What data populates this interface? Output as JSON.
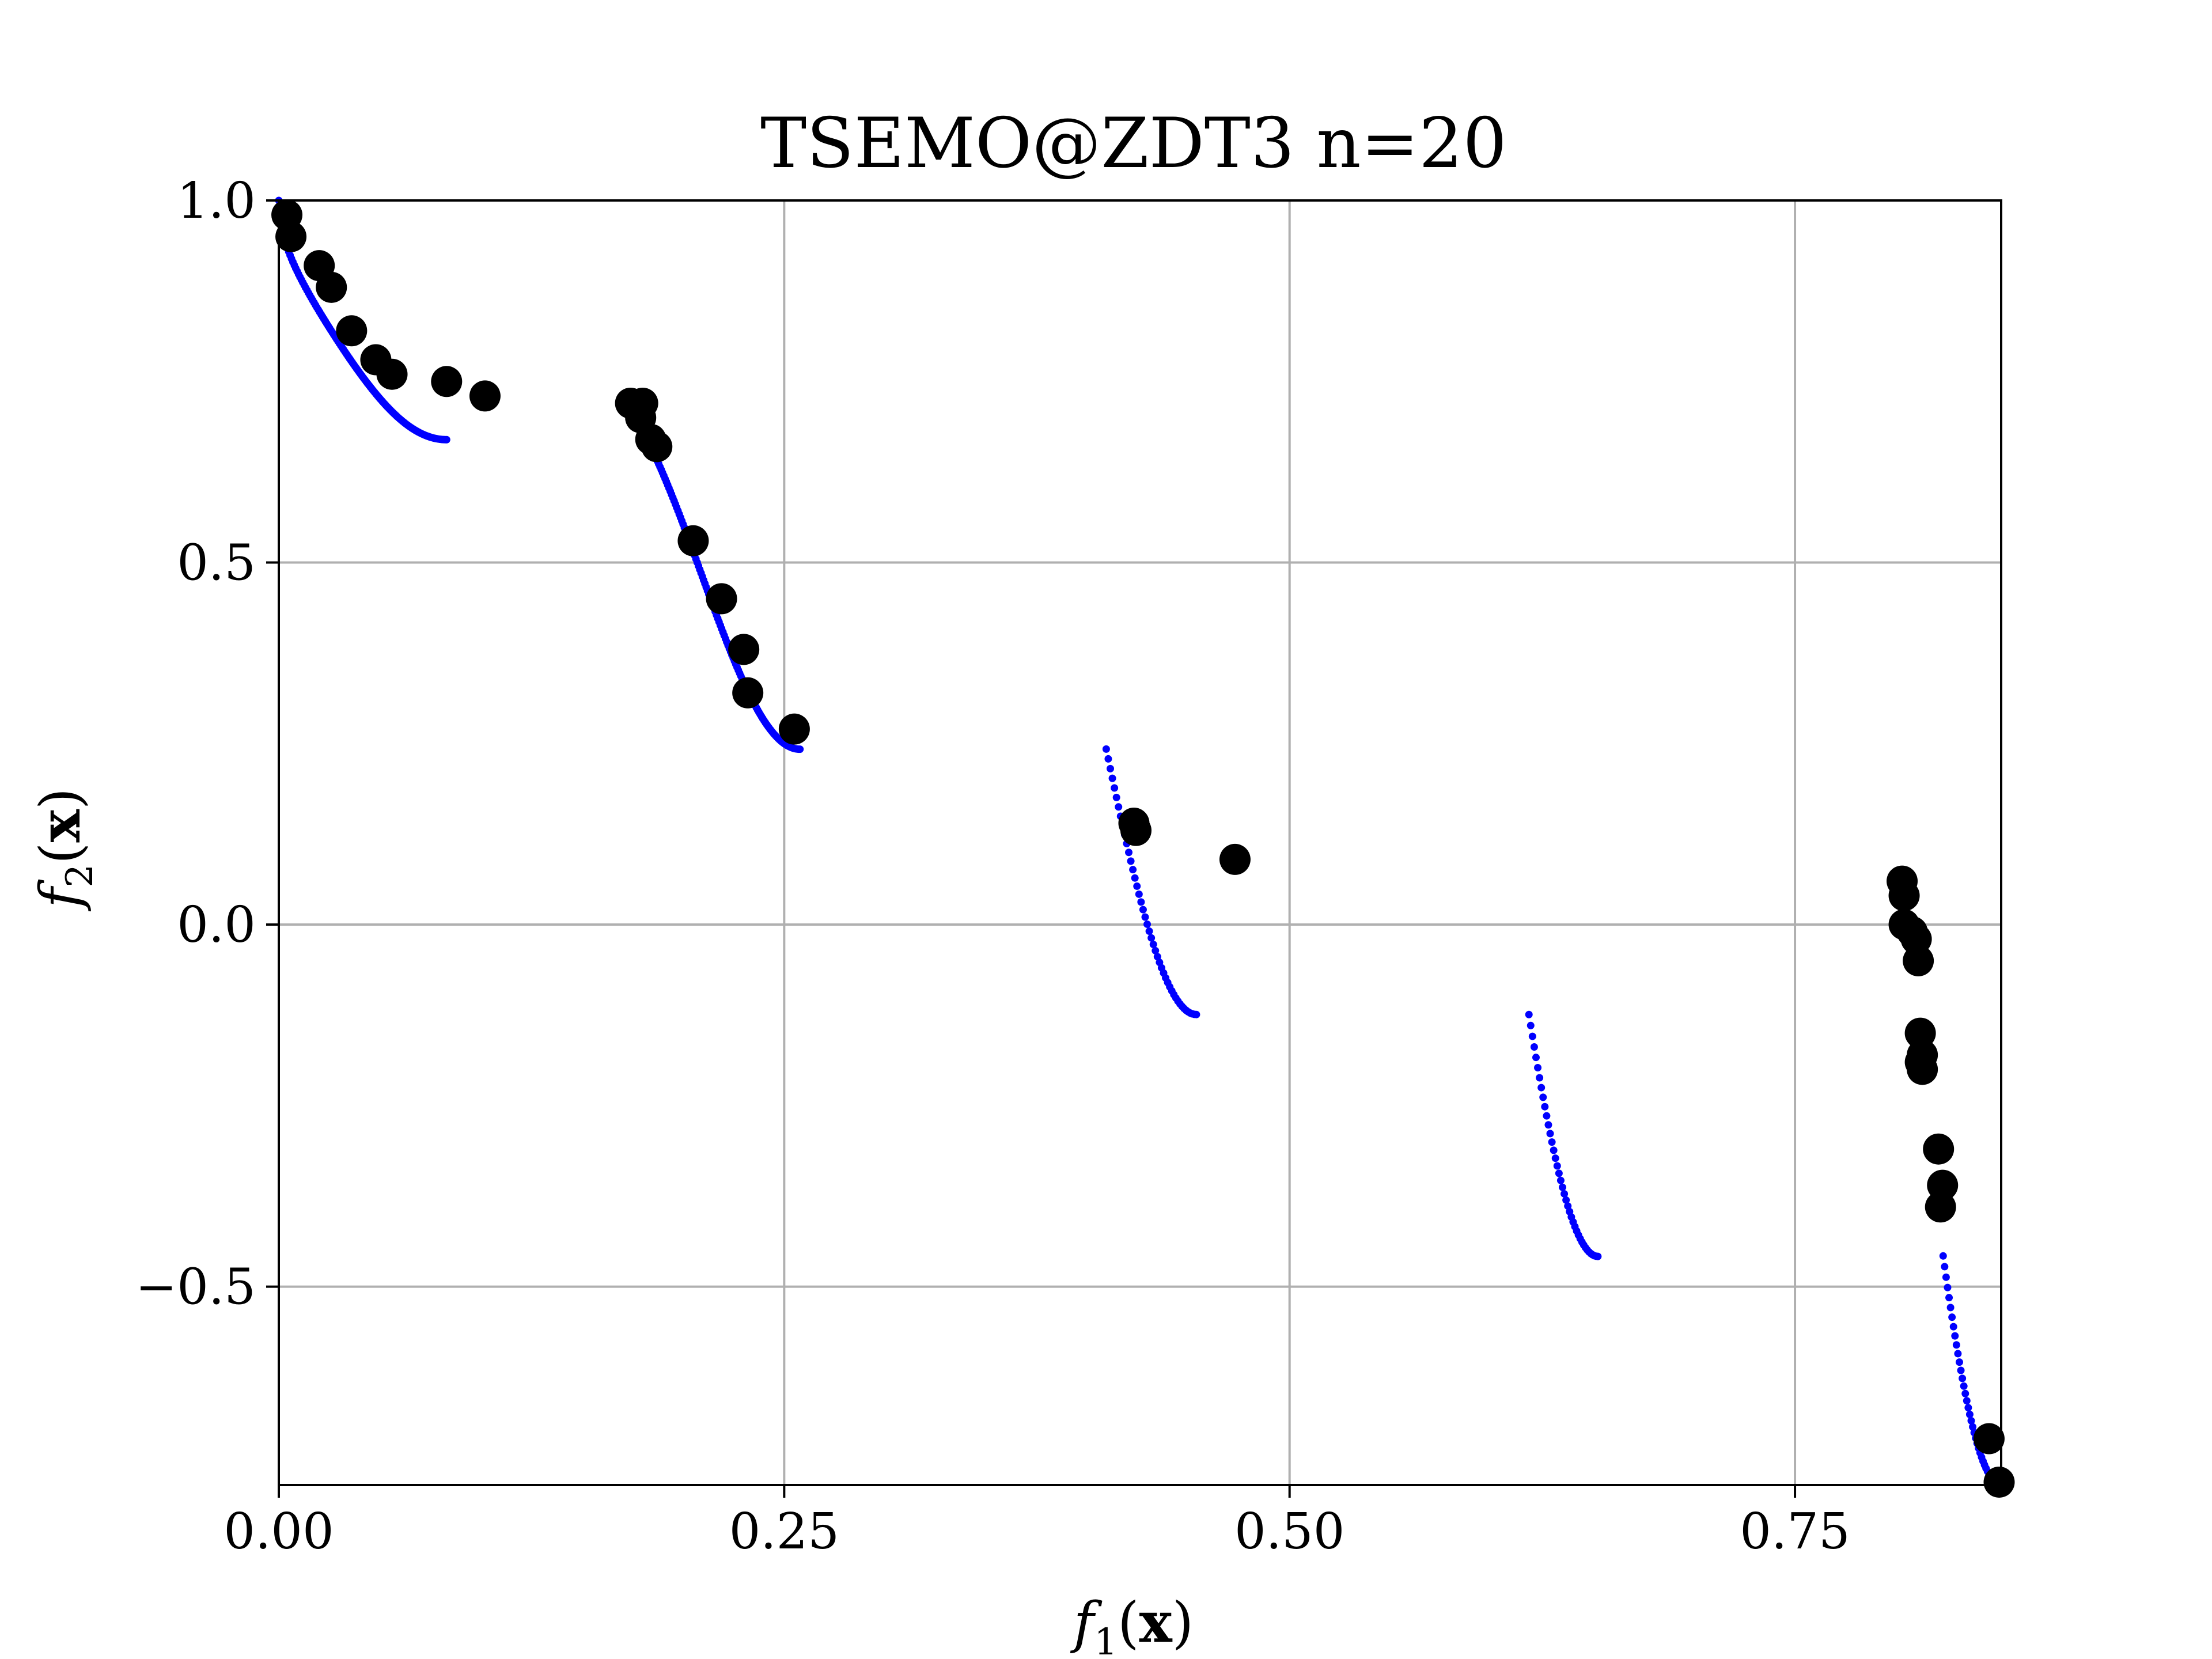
{
  "chart_data": {
    "type": "scatter",
    "title": "TSEMO@ZDT3 n=20",
    "xlabel": {
      "var": "f",
      "sub": "1",
      "open": "(",
      "arg": "x",
      "close": ")"
    },
    "ylabel": {
      "var": "f",
      "sub": "2",
      "open": "(",
      "arg": "x",
      "close": ")"
    },
    "xlim": [
      0,
      0.852
    ],
    "ylim": [
      -0.774,
      1.0
    ],
    "xticks": [
      0.0,
      0.25,
      0.5,
      0.75
    ],
    "xtick_labels": [
      "0.00",
      "0.25",
      "0.50",
      "0.75"
    ],
    "yticks": [
      -0.5,
      0.0,
      0.5,
      1.0
    ],
    "ytick_labels": [
      "−0.5",
      "0.0",
      "0.5",
      "1.0"
    ],
    "grid": true,
    "colors": {
      "front": "#0000ff",
      "samples": "#000000",
      "grid": "#b0b0b0"
    },
    "front_segments": [
      {
        "x_start": 0.0,
        "x_end": 0.083,
        "n": 120,
        "marker": "small-dot"
      },
      {
        "x_start": 0.1822,
        "x_end": 0.2578,
        "n": 120,
        "marker": "small-dot"
      },
      {
        "x_start": 0.4093,
        "x_end": 0.4539,
        "n": 45,
        "marker": "small-dot"
      },
      {
        "x_start": 0.6184,
        "x_end": 0.6525,
        "n": 40,
        "marker": "small-dot"
      },
      {
        "x_start": 0.8233,
        "x_end": 0.8518,
        "n": 40,
        "marker": "small-dot"
      }
    ],
    "series": [
      {
        "marker": "large-dot",
        "x": [
          0.004,
          0.006,
          0.02,
          0.026,
          0.036,
          0.048,
          0.056,
          0.083,
          0.102,
          0.174,
          0.18,
          0.179,
          0.184,
          0.187,
          0.205,
          0.219,
          0.23,
          0.232,
          0.255,
          0.423,
          0.424,
          0.473,
          0.803,
          0.804,
          0.804,
          0.808,
          0.81,
          0.811,
          0.812,
          0.813,
          0.812,
          0.813,
          0.821,
          0.823,
          0.822,
          0.846,
          0.851
        ],
        "y": [
          0.98,
          0.95,
          0.91,
          0.88,
          0.82,
          0.78,
          0.76,
          0.75,
          0.73,
          0.72,
          0.72,
          0.7,
          0.67,
          0.66,
          0.53,
          0.45,
          0.38,
          0.32,
          0.27,
          0.14,
          0.13,
          0.09,
          0.06,
          0.04,
          0.0,
          -0.01,
          -0.02,
          -0.05,
          -0.15,
          -0.18,
          -0.19,
          -0.2,
          -0.31,
          -0.36,
          -0.39,
          -0.71,
          -0.77
        ]
      }
    ]
  }
}
